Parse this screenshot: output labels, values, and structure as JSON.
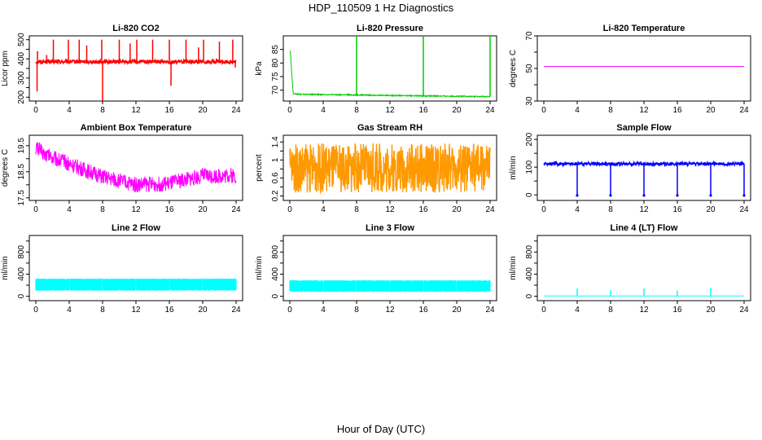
{
  "figure": {
    "title": "HDP_110509 1 Hz Diagnostics",
    "xlabel": "Hour of Day (UTC)"
  },
  "chart_data": [
    {
      "type": "line",
      "title": "Li-820 CO2",
      "xlabel": "",
      "ylabel": "Licor ppm",
      "xlim": [
        0,
        24
      ],
      "ylim": [
        180,
        520
      ],
      "xticks": [
        0,
        4,
        8,
        12,
        16,
        20,
        24
      ],
      "yticks": [
        200,
        250,
        300,
        350,
        400,
        450,
        500
      ],
      "grid": false,
      "series": [
        {
          "color": "#ff0000",
          "baseline": 385,
          "noise": 10,
          "spikes": [
            {
              "x": 0.15,
              "y": 230
            },
            {
              "x": 0.2,
              "y": 440
            },
            {
              "x": 1.3,
              "y": 420
            },
            {
              "x": 2.1,
              "y": 500
            },
            {
              "x": 3.9,
              "y": 500
            },
            {
              "x": 5.2,
              "y": 500
            },
            {
              "x": 6.1,
              "y": 470
            },
            {
              "x": 7.9,
              "y": 500
            },
            {
              "x": 8.0,
              "y": 180
            },
            {
              "x": 10.0,
              "y": 500
            },
            {
              "x": 11.3,
              "y": 480
            },
            {
              "x": 12.1,
              "y": 500
            },
            {
              "x": 14.0,
              "y": 500
            },
            {
              "x": 16.0,
              "y": 500
            },
            {
              "x": 16.2,
              "y": 260
            },
            {
              "x": 18.0,
              "y": 500
            },
            {
              "x": 19.5,
              "y": 460
            },
            {
              "x": 20.1,
              "y": 500
            },
            {
              "x": 22.0,
              "y": 490
            },
            {
              "x": 23.6,
              "y": 500
            },
            {
              "x": 23.9,
              "y": 355
            }
          ]
        }
      ]
    },
    {
      "type": "line",
      "title": "Li-820 Pressure",
      "xlabel": "",
      "ylabel": "kPa",
      "xlim": [
        0,
        24
      ],
      "ylim": [
        66,
        90
      ],
      "xticks": [
        0,
        4,
        8,
        12,
        16,
        20,
        24
      ],
      "yticks": [
        70,
        75,
        80,
        85
      ],
      "grid": false,
      "series": [
        {
          "color": "#00cc00",
          "baseline_points": [
            [
              0.05,
              84.5
            ],
            [
              0.4,
              68.8
            ],
            [
              1,
              68.5
            ],
            [
              24,
              67.6
            ]
          ],
          "noise": 0.2,
          "spikes": [
            {
              "x": 8.0,
              "y": 90
            },
            {
              "x": 16.0,
              "y": 90
            },
            {
              "x": 24.0,
              "y": 90
            }
          ]
        }
      ]
    },
    {
      "type": "line",
      "title": "Li-820 Temperature",
      "xlabel": "",
      "ylabel": "degrees C",
      "xlim": [
        0,
        24
      ],
      "ylim": [
        30,
        70
      ],
      "xticks": [
        0,
        4,
        8,
        12,
        16,
        20,
        24
      ],
      "yticks": [
        30,
        40,
        50,
        60,
        70
      ],
      "grid": false,
      "series": [
        {
          "color": "#ff00ff",
          "baseline": 51.2,
          "noise": 0
        }
      ]
    },
    {
      "type": "line",
      "title": "Ambient Box Temperature",
      "xlabel": "",
      "ylabel": "degrees C",
      "xlim": [
        0,
        24
      ],
      "ylim": [
        17.4,
        19.9
      ],
      "xticks": [
        0,
        4,
        8,
        12,
        16,
        20,
        24
      ],
      "yticks": [
        17.5,
        18.0,
        18.5,
        19.0,
        19.5
      ],
      "grid": false,
      "series": [
        {
          "color": "#ff00ff",
          "baseline_points": [
            [
              0,
              19.45
            ],
            [
              1,
              19.2
            ],
            [
              4,
              18.8
            ],
            [
              8,
              18.3
            ],
            [
              12,
              18.0
            ],
            [
              16,
              18.05
            ],
            [
              20,
              18.35
            ],
            [
              24,
              18.35
            ]
          ],
          "noise": 0.3
        }
      ]
    },
    {
      "type": "line",
      "title": "Gas Stream RH",
      "xlabel": "",
      "ylabel": "percent",
      "xlim": [
        0,
        24
      ],
      "ylim": [
        0.1,
        1.55
      ],
      "xticks": [
        0,
        4,
        8,
        12,
        16,
        20,
        24
      ],
      "yticks": [
        0.2,
        0.4,
        0.6,
        0.8,
        1.0,
        1.2,
        1.4
      ],
      "grid": false,
      "series": [
        {
          "color": "#ff9900",
          "baseline": 0.82,
          "noise": 0.55
        }
      ]
    },
    {
      "type": "line",
      "title": "Sample Flow",
      "xlabel": "",
      "ylabel": "ml/min",
      "xlim": [
        0,
        24
      ],
      "ylim": [
        -20,
        215
      ],
      "xticks": [
        0,
        4,
        8,
        12,
        16,
        20,
        24
      ],
      "yticks": [
        0,
        50,
        100,
        150,
        200
      ],
      "grid": false,
      "series": [
        {
          "color": "#0000ff",
          "baseline": 112,
          "noise": 6,
          "dips": [
            {
              "x": 4.0,
              "y": -2
            },
            {
              "x": 8.0,
              "y": -2
            },
            {
              "x": 12.0,
              "y": -2
            },
            {
              "x": 16.0,
              "y": -2
            },
            {
              "x": 20.0,
              "y": -2
            },
            {
              "x": 24.0,
              "y": -2
            }
          ]
        }
      ]
    },
    {
      "type": "line",
      "title": "Line 2 Flow",
      "xlabel": "",
      "ylabel": "ml/min",
      "xlim": [
        0,
        24
      ],
      "ylim": [
        -80,
        1100
      ],
      "xticks": [
        0,
        4,
        8,
        12,
        16,
        20,
        24
      ],
      "yticks": [
        0,
        200,
        400,
        600,
        800,
        1000
      ],
      "grid": false,
      "series": [
        {
          "color": "#00ffff",
          "band": [
            100,
            320
          ],
          "gaps": [
            4.0,
            8.0,
            12.0,
            16.0,
            20.0
          ]
        }
      ]
    },
    {
      "type": "line",
      "title": "Line 3 Flow",
      "xlabel": "",
      "ylabel": "ml/min",
      "xlim": [
        0,
        24
      ],
      "ylim": [
        -80,
        1100
      ],
      "xticks": [
        0,
        4,
        8,
        12,
        16,
        20,
        24
      ],
      "yticks": [
        0,
        200,
        400,
        600,
        800,
        1000
      ],
      "grid": false,
      "series": [
        {
          "color": "#00ffff",
          "band": [
            80,
            290
          ],
          "gaps": [
            4.0,
            8.0,
            12.0,
            16.0,
            20.0
          ]
        }
      ]
    },
    {
      "type": "line",
      "title": "Line 4 (LT) Flow",
      "xlabel": "",
      "ylabel": "ml/min",
      "xlim": [
        0,
        24
      ],
      "ylim": [
        -80,
        1100
      ],
      "xticks": [
        0,
        4,
        8,
        12,
        16,
        20,
        24
      ],
      "yticks": [
        0,
        200,
        400,
        600,
        800,
        1000
      ],
      "grid": false,
      "series": [
        {
          "color": "#00ffff",
          "baseline": 5,
          "noise": 0,
          "spikes": [
            {
              "x": 4.0,
              "y": 140
            },
            {
              "x": 8.0,
              "y": 110
            },
            {
              "x": 12.0,
              "y": 140
            },
            {
              "x": 16.0,
              "y": 100
            },
            {
              "x": 20.0,
              "y": 150
            }
          ]
        }
      ]
    }
  ]
}
